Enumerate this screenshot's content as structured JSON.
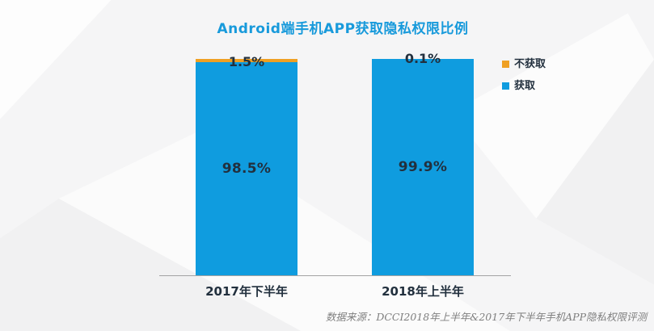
{
  "title": "Android端手机APP获取隐私权限比例",
  "colors": {
    "acquired_blue": "#0f9cdf",
    "not_acquired_orange": "#efa023",
    "title_blue": "#189adb",
    "dark_text": "#22303e",
    "axis_gray": "#a3a3a3",
    "source_gray": "#7f7f7f",
    "background": "#f5f5f6"
  },
  "chart_data": {
    "type": "bar",
    "stacked": true,
    "title": "Android端手机APP获取隐私权限比例",
    "categories": [
      "2017年下半年",
      "2018年上半年"
    ],
    "series": [
      {
        "name": "获取",
        "color": "#0f9cdf",
        "values": [
          98.5,
          99.9
        ],
        "labels": [
          "98.5%",
          "99.9%"
        ]
      },
      {
        "name": "不获取",
        "color": "#efa023",
        "values": [
          1.5,
          0.1
        ],
        "labels": [
          "1.5%",
          "0.1%"
        ]
      }
    ],
    "unit": "%",
    "ylim": [
      0,
      100
    ],
    "grid": false,
    "legend_position": "right"
  },
  "legend": {
    "items": [
      {
        "label": "不获取",
        "color": "#efa023"
      },
      {
        "label": "获取",
        "color": "#0f9cdf"
      }
    ]
  },
  "source": "数据来源：DCCI2018年上半年&2017年下半年手机APP隐私权限评测"
}
